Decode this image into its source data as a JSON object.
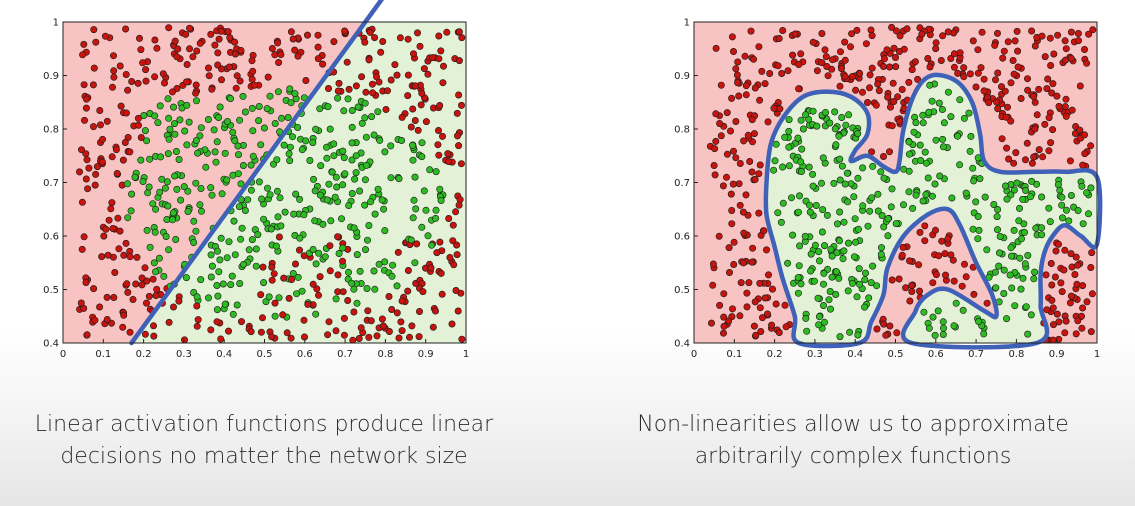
{
  "colors": {
    "red_region": "#f8c4c3",
    "green_region": "#e3f2d6",
    "red_point": "#c8140f",
    "green_point": "#2fbb23",
    "boundary": "#3f62b8"
  },
  "chart_data": [
    {
      "type": "scatter",
      "title": "",
      "xlim": [
        0,
        1
      ],
      "ylim": [
        0.4,
        1
      ],
      "x_ticks": [
        "0",
        "0.1",
        "0.2",
        "0.3",
        "0.4",
        "0.5",
        "0.6",
        "0.7",
        "0.8",
        "0.9",
        "1"
      ],
      "y_ticks": [
        "0.4",
        "0.5",
        "0.6",
        "0.7",
        "0.8",
        "0.9",
        "1"
      ],
      "series": [
        {
          "class": "red",
          "description": "dense red scatter points in outer and lower regions"
        },
        {
          "class": "green",
          "description": "dense green scatter points in central region"
        }
      ],
      "boundary": {
        "kind": "linear",
        "points": [
          [
            0.17,
            0.4
          ],
          [
            0.75,
            1.0
          ]
        ]
      },
      "caption": [
        "Linear activation functions produce linear",
        "decisions no matter the network size"
      ]
    },
    {
      "type": "scatter",
      "title": "",
      "xlim": [
        0,
        1
      ],
      "ylim": [
        0.4,
        1
      ],
      "x_ticks": [
        "0",
        "0.1",
        "0.2",
        "0.3",
        "0.4",
        "0.5",
        "0.6",
        "0.7",
        "0.8",
        "0.9",
        "1"
      ],
      "y_ticks": [
        "0.4",
        "0.5",
        "0.6",
        "0.7",
        "0.8",
        "0.9",
        "1"
      ],
      "series": [
        {
          "class": "red",
          "description": "red points outside curved boundary"
        },
        {
          "class": "green",
          "description": "green points inside curved boundary"
        }
      ],
      "boundary": {
        "kind": "nonlinear"
      },
      "caption": [
        "Non-linearities allow us to approximate",
        "arbitrarily complex functions"
      ]
    }
  ]
}
